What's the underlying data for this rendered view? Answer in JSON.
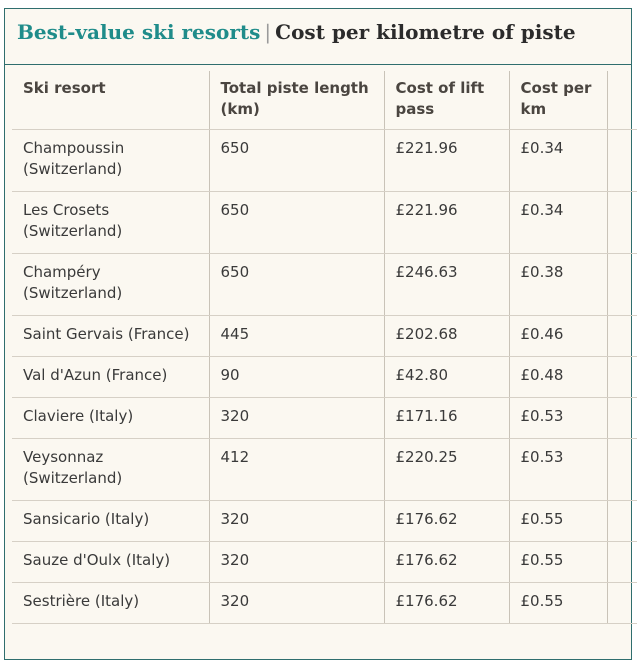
{
  "title": {
    "accent": "Best-value ski resorts",
    "separator": "|",
    "main": "Cost per kilometre of piste"
  },
  "table": {
    "headers": [
      "Ski resort",
      "Total piste length (km)",
      "Cost of lift pass",
      "Cost per km"
    ],
    "rows": [
      {
        "resort": "Champoussin (Switzerland)",
        "length": "650",
        "pass": "£221.96",
        "per_km": "£0.34"
      },
      {
        "resort": "Les Crosets (Switzerland)",
        "length": "650",
        "pass": "£221.96",
        "per_km": "£0.34"
      },
      {
        "resort": "Champéry (Switzerland)",
        "length": "650",
        "pass": "£246.63",
        "per_km": "£0.38"
      },
      {
        "resort": "Saint Gervais (France)",
        "length": "445",
        "pass": "£202.68",
        "per_km": "£0.46"
      },
      {
        "resort": "Val d'Azun (France)",
        "length": "90",
        "pass": "£42.80",
        "per_km": "£0.48"
      },
      {
        "resort": "Claviere (Italy)",
        "length": "320",
        "pass": "£171.16",
        "per_km": "£0.53"
      },
      {
        "resort": "Veysonnaz (Switzerland)",
        "length": "412",
        "pass": "£220.25",
        "per_km": "£0.53"
      },
      {
        "resort": "Sansicario (Italy)",
        "length": "320",
        "pass": "£176.62",
        "per_km": "£0.55"
      },
      {
        "resort": "Sauze d'Oulx (Italy)",
        "length": "320",
        "pass": "£176.62",
        "per_km": "£0.55"
      },
      {
        "resort": "Sestrière (Italy)",
        "length": "320",
        "pass": "£176.62",
        "per_km": "£0.55"
      }
    ]
  }
}
